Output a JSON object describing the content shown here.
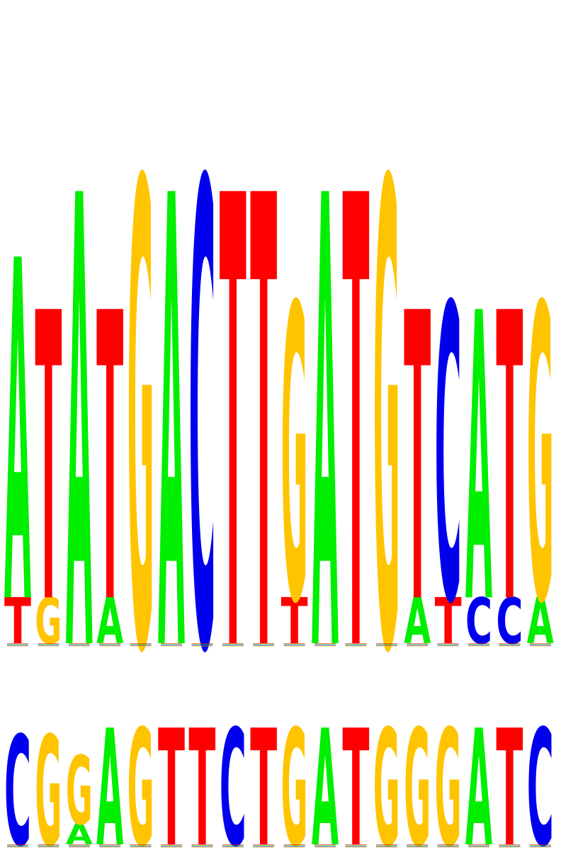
{
  "colors": {
    "A": "#00ee00",
    "C": "#0000ee",
    "G": "#ffc400",
    "T": "#ff0000"
  },
  "logos": [
    {
      "name": "upper-logo",
      "positions": [
        {
          "letters": [
            "A",
            "T"
          ],
          "heights": [
            0.52,
            0.07
          ]
        },
        {
          "letters": [
            "T",
            "G"
          ],
          "heights": [
            0.44,
            0.07
          ]
        },
        {
          "letters": [
            "A"
          ],
          "heights": [
            0.69
          ]
        },
        {
          "letters": [
            "T",
            "A"
          ],
          "heights": [
            0.44,
            0.07
          ]
        },
        {
          "letters": [
            "G"
          ],
          "heights": [
            0.71
          ]
        },
        {
          "letters": [
            "A"
          ],
          "heights": [
            0.69
          ]
        },
        {
          "letters": [
            "C"
          ],
          "heights": [
            0.71
          ]
        },
        {
          "letters": [
            "T"
          ],
          "heights": [
            0.69
          ]
        },
        {
          "letters": [
            "T"
          ],
          "heights": [
            0.69
          ]
        },
        {
          "letters": [
            "G",
            "T"
          ],
          "heights": [
            0.45,
            0.07
          ]
        },
        {
          "letters": [
            "A"
          ],
          "heights": [
            0.69
          ]
        },
        {
          "letters": [
            "T"
          ],
          "heights": [
            0.69
          ]
        },
        {
          "letters": [
            "G"
          ],
          "heights": [
            0.71
          ]
        },
        {
          "letters": [
            "T",
            "A"
          ],
          "heights": [
            0.44,
            0.07
          ]
        },
        {
          "letters": [
            "C",
            "T"
          ],
          "heights": [
            0.45,
            0.07
          ]
        },
        {
          "letters": [
            "A",
            "C"
          ],
          "heights": [
            0.44,
            0.07
          ]
        },
        {
          "letters": [
            "T",
            "C"
          ],
          "heights": [
            0.44,
            0.07
          ]
        },
        {
          "letters": [
            "G",
            "A"
          ],
          "heights": [
            0.45,
            0.07
          ]
        }
      ]
    },
    {
      "name": "lower-logo",
      "positions": [
        {
          "letters": [
            "C"
          ],
          "heights": [
            0.16
          ]
        },
        {
          "letters": [
            "G"
          ],
          "heights": [
            0.16
          ]
        },
        {
          "letters": [
            "G",
            "A"
          ],
          "heights": [
            0.1,
            0.03
          ]
        },
        {
          "letters": [
            "A"
          ],
          "heights": [
            0.17
          ]
        },
        {
          "letters": [
            "G"
          ],
          "heights": [
            0.17
          ]
        },
        {
          "letters": [
            "T"
          ],
          "heights": [
            0.17
          ]
        },
        {
          "letters": [
            "T"
          ],
          "heights": [
            0.17
          ]
        },
        {
          "letters": [
            "C"
          ],
          "heights": [
            0.17
          ]
        },
        {
          "letters": [
            "T"
          ],
          "heights": [
            0.17
          ]
        },
        {
          "letters": [
            "G"
          ],
          "heights": [
            0.17
          ]
        },
        {
          "letters": [
            "A"
          ],
          "heights": [
            0.17
          ]
        },
        {
          "letters": [
            "T"
          ],
          "heights": [
            0.17
          ]
        },
        {
          "letters": [
            "G"
          ],
          "heights": [
            0.17
          ]
        },
        {
          "letters": [
            "G"
          ],
          "heights": [
            0.17
          ]
        },
        {
          "letters": [
            "G"
          ],
          "heights": [
            0.17
          ]
        },
        {
          "letters": [
            "A"
          ],
          "heights": [
            0.17
          ]
        },
        {
          "letters": [
            "T"
          ],
          "heights": [
            0.17
          ]
        },
        {
          "letters": [
            "C"
          ],
          "heights": [
            0.17
          ]
        }
      ]
    }
  ]
}
